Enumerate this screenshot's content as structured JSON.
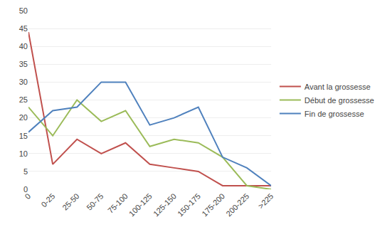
{
  "chart_data": {
    "type": "line",
    "categories": [
      "0",
      "0-25",
      "25-50",
      "50-75",
      "75-100",
      "100-125",
      "125-150",
      "150-175",
      "175-200",
      "200-225",
      ">225"
    ],
    "series": [
      {
        "name": "Avant la grossesse",
        "color": "#c0504d",
        "values": [
          44,
          7,
          14,
          10,
          13,
          7,
          6,
          5,
          1,
          1,
          1
        ]
      },
      {
        "name": "Début de grossesse",
        "color": "#9bbb59",
        "values": [
          23,
          15,
          25,
          19,
          22,
          12,
          14,
          13,
          9,
          1,
          0
        ]
      },
      {
        "name": "Fin de grossesse",
        "color": "#4f81bd",
        "values": [
          16,
          22,
          23,
          30,
          30,
          18,
          20,
          23,
          9,
          6,
          1
        ]
      }
    ],
    "ylim": [
      0,
      50
    ],
    "yticks": [
      0,
      5,
      10,
      15,
      20,
      25,
      30,
      35,
      40,
      45,
      50
    ],
    "grid": true,
    "legend": "right"
  }
}
